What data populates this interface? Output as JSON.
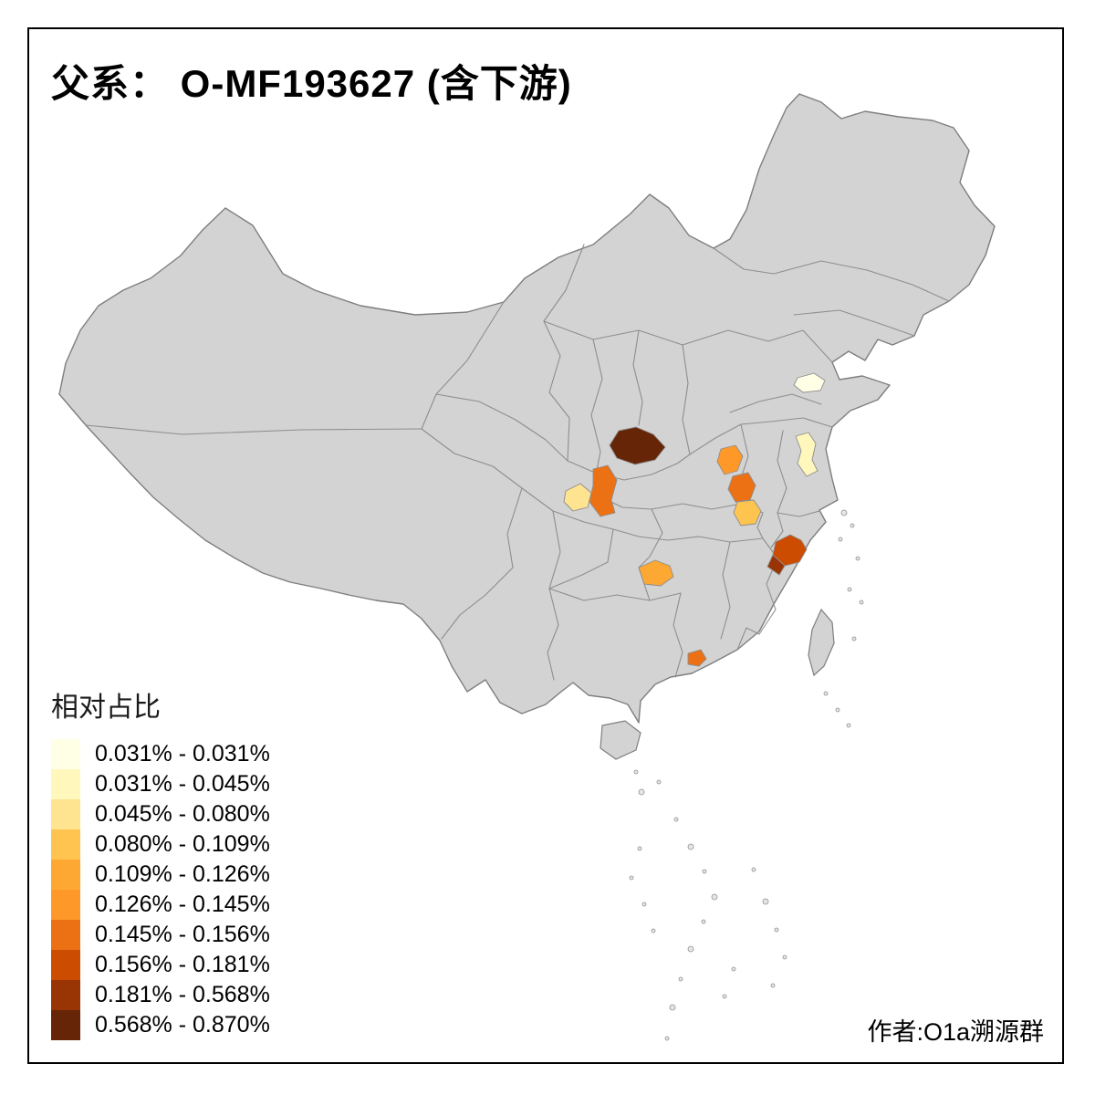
{
  "title": "父系： O-MF193627 (含下游)",
  "attribution": "作者:O1a溯源群",
  "legend": {
    "title": "相对占比",
    "items": [
      {
        "label": "0.031% - 0.031%",
        "color": "#FFFFE5"
      },
      {
        "label": "0.031% - 0.045%",
        "color": "#FFF7BC"
      },
      {
        "label": "0.045% - 0.080%",
        "color": "#FEE391"
      },
      {
        "label": "0.080% - 0.109%",
        "color": "#FEC44F"
      },
      {
        "label": "0.109% - 0.126%",
        "color": "#FEA834"
      },
      {
        "label": "0.126% - 0.145%",
        "color": "#FE9929"
      },
      {
        "label": "0.145% - 0.156%",
        "color": "#EC7014"
      },
      {
        "label": "0.156% - 0.181%",
        "color": "#CC4C02"
      },
      {
        "label": "0.181% - 0.568%",
        "color": "#993404"
      },
      {
        "label": "0.568% - 0.870%",
        "color": "#662506"
      }
    ]
  },
  "map": {
    "land_color": "#D3D3D3",
    "border_color": "#8E8E8E",
    "outline_color": "#7E7E7E",
    "sea_color": "#FFFFFF",
    "regions": [
      {
        "id": "region-1",
        "bin": "0.568% - 0.870%",
        "color": "#662506"
      },
      {
        "id": "region-2",
        "bin": "0.126% - 0.145%",
        "color": "#FE9929"
      },
      {
        "id": "region-3",
        "bin": "0.145% - 0.156%",
        "color": "#EC7014"
      },
      {
        "id": "region-4",
        "bin": "0.080% - 0.109%",
        "color": "#FEC44F"
      },
      {
        "id": "region-5",
        "bin": "0.145% - 0.156%",
        "color": "#EC7014"
      },
      {
        "id": "region-6",
        "bin": "0.045% - 0.080%",
        "color": "#FEE391"
      },
      {
        "id": "region-7",
        "bin": "0.156% - 0.181%",
        "color": "#CC4C02"
      },
      {
        "id": "region-8",
        "bin": "0.181% - 0.568%",
        "color": "#993404"
      },
      {
        "id": "region-9",
        "bin": "0.031% - 0.031%",
        "color": "#FFFFE5"
      },
      {
        "id": "region-10",
        "bin": "0.145% - 0.156%",
        "color": "#EC7014"
      },
      {
        "id": "region-11",
        "bin": "0.031% - 0.045%",
        "color": "#FFF7BC"
      },
      {
        "id": "region-12",
        "bin": "0.109% - 0.126%",
        "color": "#FEA834"
      }
    ]
  }
}
